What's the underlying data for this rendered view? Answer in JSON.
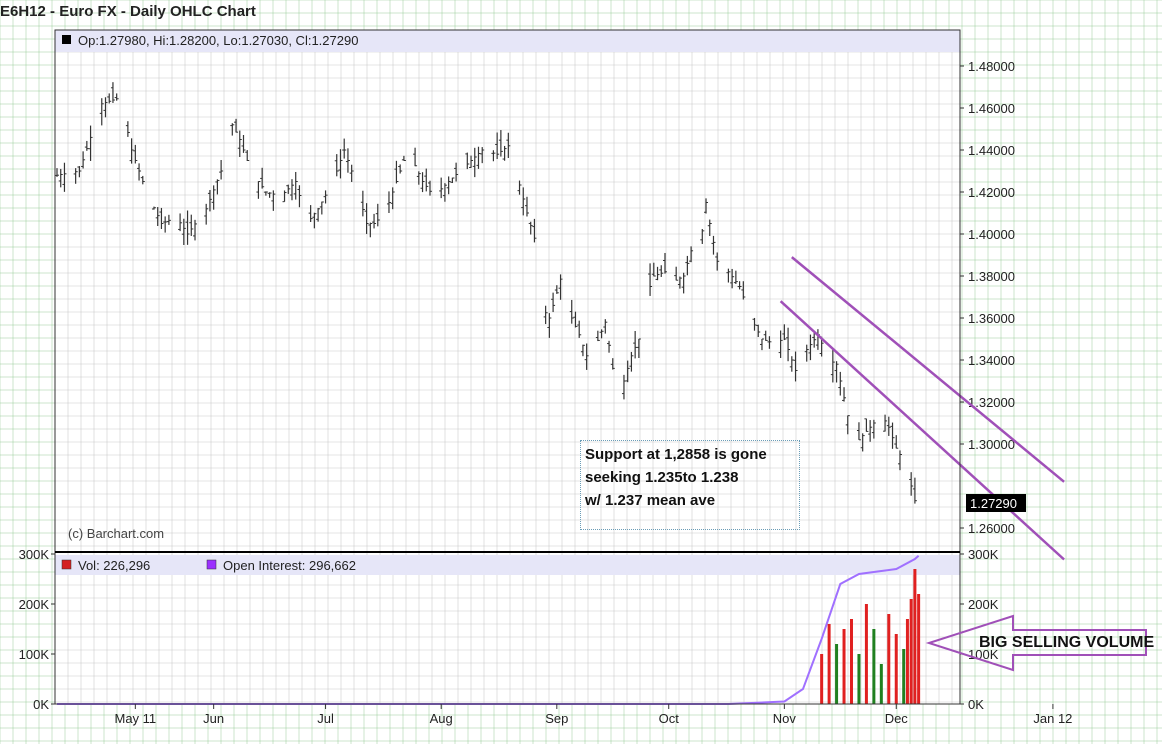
{
  "chart_data": [
    {
      "type": "ohlc",
      "title": "E6H12 - Euro FX - Daily OHLC Chart",
      "legend": {
        "op": "1.27980",
        "hi": "1.28200",
        "lo": "1.27030",
        "cl": "1.27290"
      },
      "info_line": "Op:1.27980, Hi:1.28200, Lo:1.27030, Cl:1.27290",
      "watermark": "(c) Barchart.com",
      "last_price_label": "1.27290",
      "ylim": [
        1.25,
        1.49
      ],
      "y_ticks": [
        "1.48000",
        "1.46000",
        "1.44000",
        "1.42000",
        "1.40000",
        "1.38000",
        "1.36000",
        "1.34000",
        "1.32000",
        "1.30000",
        "1.26000"
      ],
      "x_ticks": [
        "May 11",
        "Jun",
        "Jul",
        "Aug",
        "Sep",
        "Oct",
        "Nov",
        "Dec",
        "Jan 12"
      ],
      "grid": true,
      "close_path": [
        [
          0,
          1.428
        ],
        [
          6,
          1.43
        ],
        [
          12,
          1.462
        ],
        [
          17,
          1.465
        ],
        [
          20,
          1.44
        ],
        [
          24,
          1.42
        ],
        [
          28,
          1.405
        ],
        [
          32,
          1.408
        ],
        [
          35,
          1.4
        ],
        [
          40,
          1.412
        ],
        [
          44,
          1.43
        ],
        [
          47,
          1.452
        ],
        [
          49,
          1.445
        ],
        [
          52,
          1.43
        ],
        [
          56,
          1.42
        ],
        [
          60,
          1.418
        ],
        [
          64,
          1.425
        ],
        [
          67,
          1.405
        ],
        [
          70,
          1.412
        ],
        [
          74,
          1.425
        ],
        [
          77,
          1.44
        ],
        [
          80,
          1.425
        ],
        [
          83,
          1.405
        ],
        [
          85,
          1.405
        ],
        [
          88,
          1.41
        ],
        [
          91,
          1.425
        ],
        [
          94,
          1.44
        ],
        [
          98,
          1.425
        ],
        [
          101,
          1.418
        ],
        [
          105,
          1.425
        ],
        [
          108,
          1.43
        ],
        [
          111,
          1.435
        ],
        [
          114,
          1.44
        ],
        [
          118,
          1.438
        ],
        [
          121,
          1.442
        ],
        [
          123,
          1.43
        ],
        [
          126,
          1.41
        ],
        [
          128,
          1.398
        ],
        [
          130,
          1.365
        ],
        [
          132,
          1.36
        ],
        [
          134,
          1.372
        ],
        [
          136,
          1.385
        ],
        [
          138,
          1.36
        ],
        [
          140,
          1.352
        ],
        [
          142,
          1.342
        ],
        [
          144,
          1.345
        ],
        [
          147,
          1.358
        ],
        [
          150,
          1.325
        ],
        [
          152,
          1.33
        ],
        [
          154,
          1.342
        ],
        [
          156,
          1.35
        ],
        [
          158,
          1.37
        ],
        [
          160,
          1.38
        ],
        [
          163,
          1.382
        ],
        [
          165,
          1.377
        ],
        [
          168,
          1.38
        ],
        [
          170,
          1.392
        ],
        [
          172,
          1.388
        ],
        [
          174,
          1.415
        ],
        [
          175,
          1.405
        ],
        [
          178,
          1.378
        ],
        [
          180,
          1.382
        ],
        [
          183,
          1.375
        ],
        [
          186,
          1.36
        ],
        [
          189,
          1.35
        ],
        [
          192,
          1.348
        ],
        [
          195,
          1.35
        ],
        [
          198,
          1.335
        ],
        [
          201,
          1.345
        ],
        [
          204,
          1.352
        ],
        [
          207,
          1.34
        ],
        [
          209,
          1.338
        ],
        [
          211,
          1.322
        ],
        [
          213,
          1.305
        ],
        [
          215,
          1.302
        ],
        [
          218,
          1.308
        ],
        [
          221,
          1.314
        ],
        [
          223,
          1.308
        ],
        [
          225,
          1.298
        ],
        [
          227,
          1.292
        ],
        [
          229,
          1.28
        ],
        [
          230,
          1.273
        ]
      ],
      "channel_lines": [
        {
          "from": [
            "2011-11-03",
            1.389
          ],
          "to": [
            "2012-01-15",
            1.282
          ]
        },
        {
          "from": [
            "2011-10-31",
            1.368
          ],
          "to": [
            "2012-01-15",
            1.245
          ]
        }
      ]
    },
    {
      "type": "bar",
      "legend": [
        {
          "name": "Vol: 226,296",
          "color": "#d42020"
        },
        {
          "name": "Open Interest: 296,662",
          "color": "#9b30ff"
        }
      ],
      "y_ticks": [
        "300K",
        "200K",
        "100K",
        "0K"
      ],
      "ylim": [
        0,
        300000
      ],
      "volume_bars": [
        [
          205,
          100000,
          "red"
        ],
        [
          207,
          160000,
          "red"
        ],
        [
          209,
          120000,
          "green"
        ],
        [
          211,
          150000,
          "red"
        ],
        [
          213,
          170000,
          "red"
        ],
        [
          215,
          100000,
          "green"
        ],
        [
          217,
          200000,
          "red"
        ],
        [
          219,
          150000,
          "green"
        ],
        [
          221,
          80000,
          "green"
        ],
        [
          223,
          180000,
          "red"
        ],
        [
          225,
          140000,
          "red"
        ],
        [
          227,
          110000,
          "green"
        ],
        [
          228,
          170000,
          "red"
        ],
        [
          229,
          210000,
          "red"
        ],
        [
          230,
          270000,
          "red"
        ],
        [
          231,
          220000,
          "red"
        ]
      ],
      "open_interest": [
        [
          0,
          0
        ],
        [
          180,
          0
        ],
        [
          195,
          5000
        ],
        [
          200,
          30000
        ],
        [
          205,
          130000
        ],
        [
          210,
          240000
        ],
        [
          215,
          260000
        ],
        [
          220,
          265000
        ],
        [
          225,
          270000
        ],
        [
          230,
          290000
        ],
        [
          231,
          296662
        ]
      ]
    }
  ],
  "annotation": {
    "lines": [
      "Support at 1,2858 is gone",
      "seeking 1.235to 1.238",
      "w/ 1.237 mean ave"
    ]
  },
  "callout": {
    "label": "BIG SELLING VOLUME"
  },
  "colors": {
    "channel": "#a050b8",
    "price": "#333333",
    "vol_up": "#208020",
    "vol_down": "#e02020",
    "oi": "#a070ff",
    "info_bar": "#e6e6f8",
    "grid": "#cccccc",
    "outer_grid": "#99cc99"
  }
}
